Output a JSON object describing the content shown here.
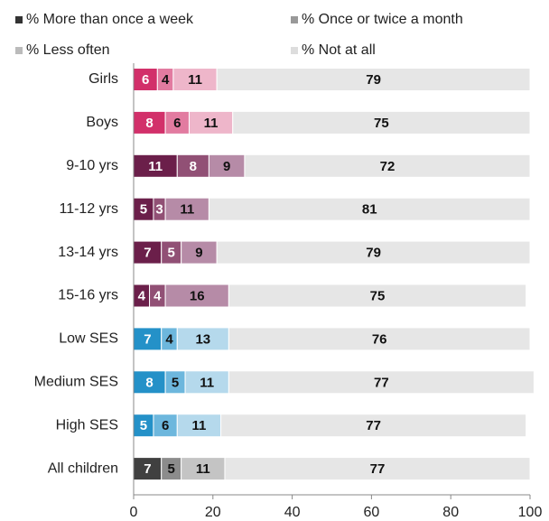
{
  "chart_data": {
    "type": "stacked-bar-horizontal",
    "categories": [
      "Girls",
      "Boys",
      "9-10 yrs",
      "11-12 yrs",
      "13-14 yrs",
      "15-16 yrs",
      "Low SES",
      "Medium SES",
      "High SES",
      "All children"
    ],
    "series": [
      {
        "name": "% More than once a week",
        "color": "#333333",
        "values": [
          6,
          8,
          11,
          5,
          7,
          4,
          7,
          8,
          5,
          7
        ],
        "colors": [
          "#d2306a",
          "#d2306a",
          "#6b1f4a",
          "#6b1f4a",
          "#6b1f4a",
          "#6b1f4a",
          "#2491c8",
          "#2491c8",
          "#2491c8",
          "#404040"
        ]
      },
      {
        "name": "% Once or twice a month",
        "color": "#999999",
        "values": [
          4,
          6,
          8,
          3,
          5,
          4,
          4,
          5,
          6,
          5
        ],
        "colors": [
          "#e27ba0",
          "#e27ba0",
          "#915075",
          "#915075",
          "#915075",
          "#915075",
          "#6db7dd",
          "#6db7dd",
          "#6db7dd",
          "#8c8c8c"
        ]
      },
      {
        "name": "% Less often",
        "color": "#bbbbbb",
        "values": [
          11,
          11,
          9,
          11,
          9,
          16,
          13,
          11,
          11,
          11
        ],
        "colors": [
          "#eeb6ca",
          "#eeb6ca",
          "#b68ba7",
          "#b68ba7",
          "#b68ba7",
          "#b68ba7",
          "#b5d9ec",
          "#b5d9ec",
          "#b5d9ec",
          "#c4c4c4"
        ]
      },
      {
        "name": "% Not at all",
        "color": "#dddddd",
        "values": [
          79,
          75,
          72,
          81,
          79,
          75,
          76,
          77,
          77,
          77
        ],
        "colors": [
          "#e6e6e6",
          "#e6e6e6",
          "#e6e6e6",
          "#e6e6e6",
          "#e6e6e6",
          "#e6e6e6",
          "#e6e6e6",
          "#e6e6e6",
          "#e6e6e6",
          "#e6e6e6"
        ]
      }
    ],
    "xlim": [
      0,
      100
    ],
    "xticks": [
      0,
      20,
      40,
      60,
      80,
      100
    ],
    "legend": "top"
  }
}
